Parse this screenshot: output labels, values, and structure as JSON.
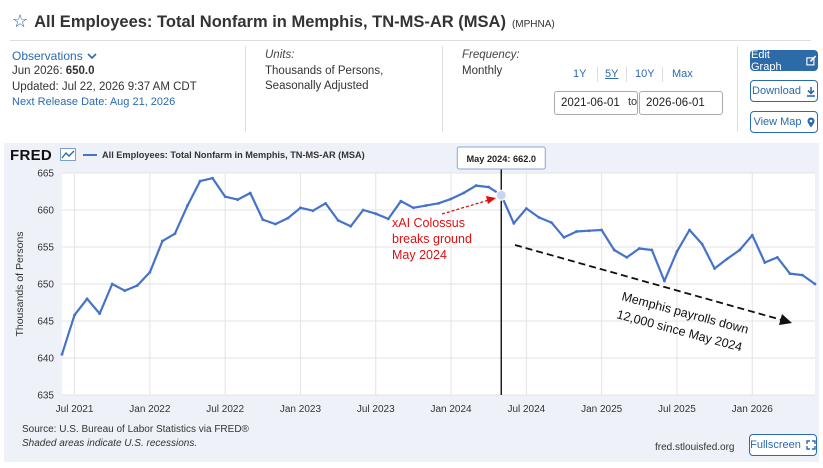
{
  "header": {
    "title": "All Employees: Total Nonfarm in Memphis, TN-MS-AR (MSA)",
    "series_id": "(MPHNA)",
    "star_icon": "star-icon"
  },
  "info": {
    "observations_label": "Observations",
    "latest_period": "Jun 2026:",
    "latest_value": "650.0",
    "updated": "Updated: Jul 22, 2026 9:37 AM CDT",
    "next_release": "Next Release Date: Aug 21, 2026",
    "units_label": "Units:",
    "units_line1": "Thousands of Persons,",
    "units_line2": "Seasonally Adjusted",
    "frequency_label": "Frequency:",
    "frequency_value": "Monthly"
  },
  "range": {
    "options": [
      "1Y",
      "5Y",
      "10Y",
      "Max"
    ],
    "selected": "5Y",
    "start": "2021-06-01",
    "end": "2026-06-01",
    "to_label": "to"
  },
  "buttons": {
    "edit": "Edit Graph",
    "download": "Download",
    "map": "View Map"
  },
  "chart_panel": {
    "logo": "FRED",
    "source": "Source: U.S. Bureau of Labor Statistics via FRED®",
    "shaded_note": "Shaded areas indicate U.S. recessions.",
    "site": "fred.stlouisfed.org",
    "fullscreen": "Fullscreen"
  },
  "colors": {
    "line": "#4673c9",
    "accent": "#2c6aa8",
    "annotation_red": "#dd1111",
    "panel_bg": "#eef2f8"
  },
  "chart_data": {
    "type": "line",
    "ylabel": "Thousands of Persons",
    "ylim": [
      635,
      665
    ],
    "yticks": [
      635,
      640,
      645,
      650,
      655,
      660,
      665
    ],
    "grid": true,
    "legend": "top-left",
    "xticks": [
      "Jul 2021",
      "Jan 2022",
      "Jul 2022",
      "Jan 2023",
      "Jul 2023",
      "Jan 2024",
      "Jul 2024",
      "Jan 2025",
      "Jul 2025",
      "Jan 2026"
    ],
    "series": [
      {
        "name": "All Employees: Total Nonfarm in Memphis, TN-MS-AR (MSA)",
        "start": "2021-06",
        "values": [
          640.5,
          645.8,
          648.0,
          646.0,
          650.0,
          649.1,
          649.8,
          651.6,
          655.8,
          656.8,
          660.6,
          663.9,
          664.3,
          661.8,
          661.4,
          662.3,
          658.7,
          658.1,
          658.9,
          660.3,
          659.9,
          660.9,
          658.6,
          657.8,
          660.0,
          659.5,
          658.8,
          661.2,
          660.3,
          660.6,
          660.9,
          661.5,
          662.3,
          663.3,
          663.1,
          662.0,
          658.2,
          660.2,
          659.0,
          658.3,
          656.3,
          657.1,
          657.2,
          657.3,
          654.6,
          653.6,
          654.8,
          654.6,
          650.4,
          654.4,
          657.3,
          655.4,
          652.1,
          653.4,
          654.6,
          656.6,
          652.9,
          653.6,
          651.4,
          651.2,
          650.0
        ]
      }
    ],
    "tooltip": {
      "label": "May 2024:",
      "value": "662.0",
      "date": "2024-05"
    },
    "annotations": [
      {
        "text_lines": [
          "xAI Colossus",
          "breaks ground",
          "May 2024"
        ],
        "color": "red"
      },
      {
        "text_lines": [
          "Memphis payrolls down",
          "12,000 since May 2024"
        ],
        "color": "black"
      }
    ]
  }
}
